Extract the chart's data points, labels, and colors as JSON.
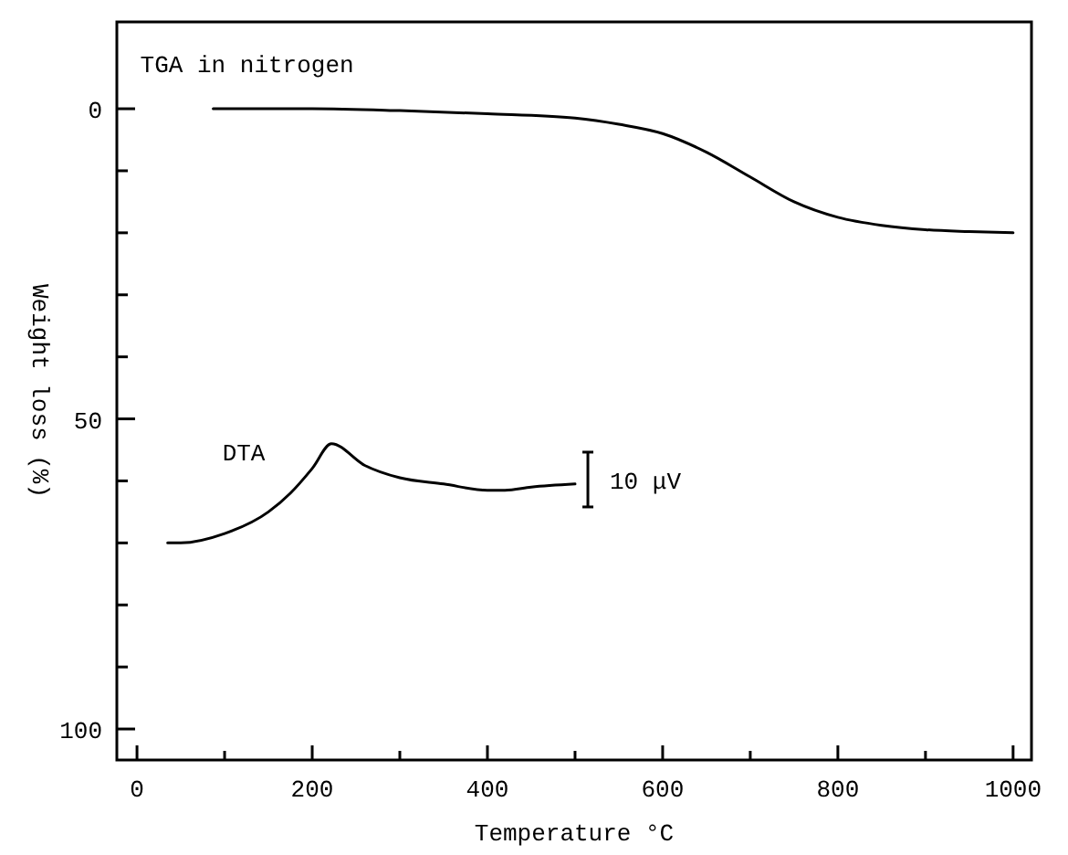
{
  "chart_data": {
    "type": "line",
    "xlabel": "Temperature  °C",
    "ylabel": "Weight loss (%)",
    "xlim": [
      -23,
      1021
    ],
    "ylim": [
      105,
      -14
    ],
    "xticks": [
      0,
      {
        "value": 100,
        "label": null
      },
      200,
      {
        "value": 300,
        "label": null
      },
      400,
      {
        "value": 500,
        "label": null
      },
      600,
      {
        "value": 700,
        "label": null
      },
      800,
      {
        "value": 900,
        "label": null
      },
      1000
    ],
    "yticks": [
      0,
      {
        "value": 10,
        "label": null
      },
      {
        "value": 20,
        "label": null
      },
      {
        "value": 30,
        "label": null
      },
      {
        "value": 40,
        "label": null
      },
      50,
      {
        "value": 60,
        "label": null
      },
      {
        "value": 70,
        "label": null
      },
      {
        "value": 80,
        "label": null
      },
      {
        "value": 90,
        "label": null
      },
      100
    ],
    "grid": false,
    "legend": false,
    "marker": "none",
    "line_style": "solid",
    "series": [
      {
        "name": "TGA in nitrogen",
        "color": "#000000",
        "x": [
          87,
          200,
          300,
          400,
          500,
          550,
          600,
          650,
          700,
          750,
          800,
          850,
          900,
          950,
          1000
        ],
        "values": [
          0,
          0,
          0.3,
          0.8,
          1.5,
          2.5,
          4,
          7,
          11,
          15,
          17.5,
          18.8,
          19.5,
          19.8,
          20
        ]
      },
      {
        "name": "DTA",
        "color": "#000000",
        "x": [
          35,
          50,
          100,
          150,
          175,
          200,
          222,
          260,
          300,
          350,
          400,
          420,
          450,
          500
        ],
        "values": [
          70,
          70,
          68.5,
          65,
          62,
          58,
          54,
          57.5,
          59.5,
          60.5,
          61.5,
          61.5,
          61,
          60.5
        ]
      }
    ],
    "annotations": [
      "10 μV"
    ]
  }
}
